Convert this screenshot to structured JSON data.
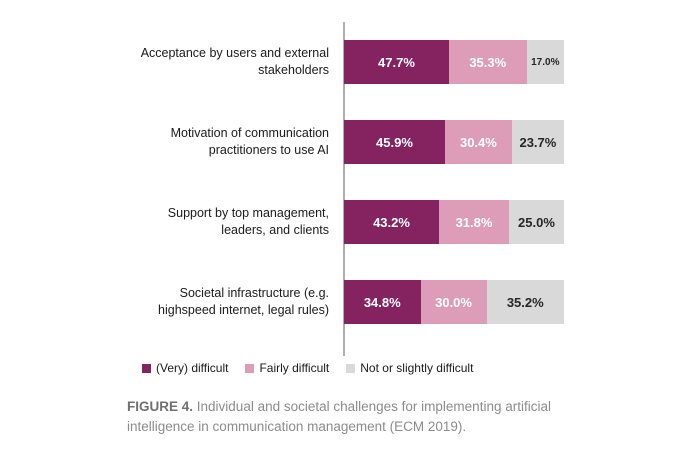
{
  "chart_data": {
    "type": "bar",
    "orientation": "horizontal-stacked",
    "title": "",
    "xlabel": "",
    "ylabel": "",
    "xlim": [
      0,
      100
    ],
    "grid": false,
    "legend_position": "bottom",
    "axis_line_color": "#aeaeae",
    "categories": [
      "Acceptance by users and external stakeholders",
      "Motivation of communication practitioners to use AI",
      "Support by top management, leaders, and clients",
      "Societal infrastructure (e.g. highspeed internet, legal rules)"
    ],
    "category_lines": [
      [
        "Acceptance by users and external",
        "stakeholders"
      ],
      [
        "Motivation of communication",
        "practitioners to use AI"
      ],
      [
        "Support by top management,",
        "leaders, and clients"
      ],
      [
        "Societal infrastructure (e.g.",
        "highspeed internet, legal rules)"
      ]
    ],
    "series": [
      {
        "name": "(Very) difficult",
        "color": "#84235f",
        "values": [
          47.7,
          45.9,
          43.2,
          34.8
        ],
        "labels": [
          "47.7%",
          "45.9%",
          "43.2%",
          "34.8%"
        ]
      },
      {
        "name": "Fairly difficult",
        "color": "#dd9cb8",
        "values": [
          35.3,
          30.4,
          31.8,
          30.0
        ],
        "labels": [
          "35.3%",
          "30.4%",
          "31.8%",
          "30.0%"
        ]
      },
      {
        "name": "Not or slightly difficult",
        "color": "#d9d9d9",
        "values": [
          17.0,
          23.7,
          25.0,
          35.2
        ],
        "labels": [
          "17.0%",
          "23.7%",
          "25.0%",
          "35.2%"
        ]
      }
    ]
  },
  "caption": {
    "bold": "FIGURE 4.",
    "text": "Individual and societal challenges for implementing artificial intelligence in communication management (ECM 2019)."
  }
}
